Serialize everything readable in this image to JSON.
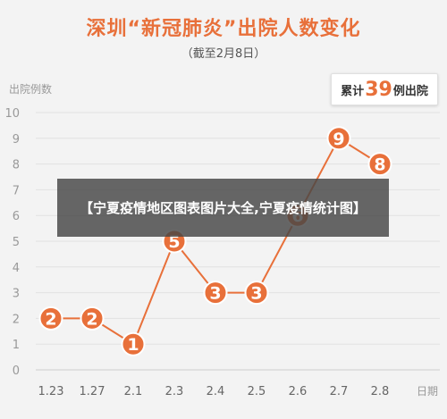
{
  "chart_data": {
    "type": "line",
    "title": "深圳“新冠肺炎”出院人数变化",
    "subtitle": "（截至2月8日）",
    "ylabel": "出院例数",
    "xlabel": "日期",
    "categories": [
      "1.23",
      "1.27",
      "2.1",
      "2.3",
      "2.4",
      "2.5",
      "2.6",
      "2.7",
      "2.8"
    ],
    "values": [
      2,
      2,
      1,
      5,
      3,
      3,
      6,
      9,
      8
    ],
    "ylim": [
      0,
      10
    ],
    "yticks": [
      0,
      1,
      2,
      3,
      4,
      5,
      6,
      7,
      8,
      9,
      10
    ],
    "grid": true,
    "annotation": {
      "prefix": "累计",
      "number": "39",
      "suffix": "例出院"
    }
  },
  "overlay_caption": "【宁夏疫情地区图表图片大全,宁夏疫情统计图】",
  "colors": {
    "accent": "#e8703a",
    "axis_text": "#999999",
    "grid": "#e2e2e2"
  }
}
